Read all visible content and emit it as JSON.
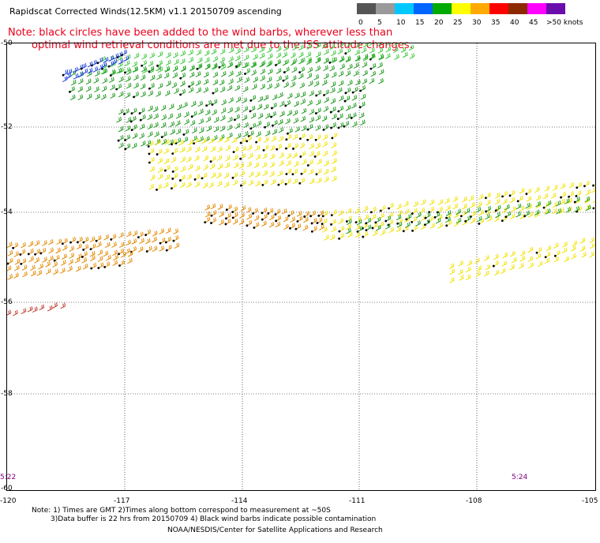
{
  "header": {
    "title": "Rapidscat Corrected Winds(12.5KM) v1.1 20150709 ascending",
    "note_line1": "Note: black circles have been added to the wind barbs, wherever less than",
    "note_line2": "optimal wind retrieval conditions are met due to the ISS attitude changes."
  },
  "legend": {
    "labels": [
      "0",
      "5",
      "10",
      "15",
      "20",
      "25",
      "30",
      "35",
      "40",
      "45",
      ">50 knots"
    ],
    "colors": [
      "#555555",
      "#9a9a9a",
      "#00c8ff",
      "#0064ff",
      "#00aa00",
      "#ffff00",
      "#ffaa00",
      "#ff0000",
      "#8b2a00",
      "#ff00ff",
      "#6a0dad"
    ]
  },
  "axes": {
    "y_labels": [
      "-50",
      "-52",
      "-54",
      "-56",
      "-58",
      "-60"
    ],
    "x_labels": [
      "-120",
      "-117",
      "-114",
      "-111",
      "-108",
      "-105"
    ]
  },
  "times": {
    "left": "5:22",
    "right": "5:24"
  },
  "footer": {
    "line1": "Note: 1) Times are GMT 2)Times along bottom correspond to measurement at ~50S",
    "line2": "3)Data buffer is 22 hrs from 20150709 4) Black wind barbs indicate possible contamination",
    "credit": "NOAA/NESDIS/Center for Satellite Applications and Research"
  }
}
